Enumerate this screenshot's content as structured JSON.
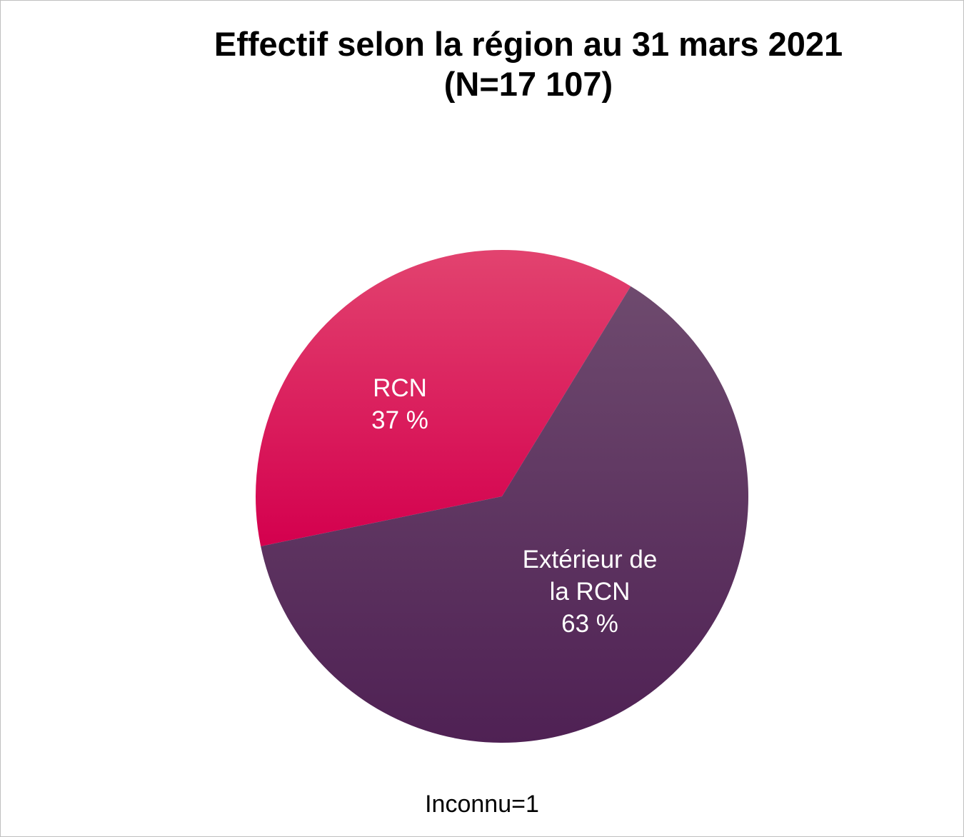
{
  "chart_data": {
    "type": "pie",
    "title_lines": [
      "Effectif selon la région au 31 mars 2021",
      "(N=17 107)"
    ],
    "slices": [
      {
        "label_lines": [
          "RCN",
          "37 %"
        ],
        "value": 37,
        "color_top": "#e2436f",
        "color_bottom": "#d4004e"
      },
      {
        "label_lines": [
          "Extérieur de",
          "la RCN",
          "63 %"
        ],
        "value": 63,
        "color_top": "#6e4a6e",
        "color_bottom": "#4f2154"
      }
    ],
    "start_angle_deg": 31.5,
    "footnote": "Inconnu=1"
  }
}
